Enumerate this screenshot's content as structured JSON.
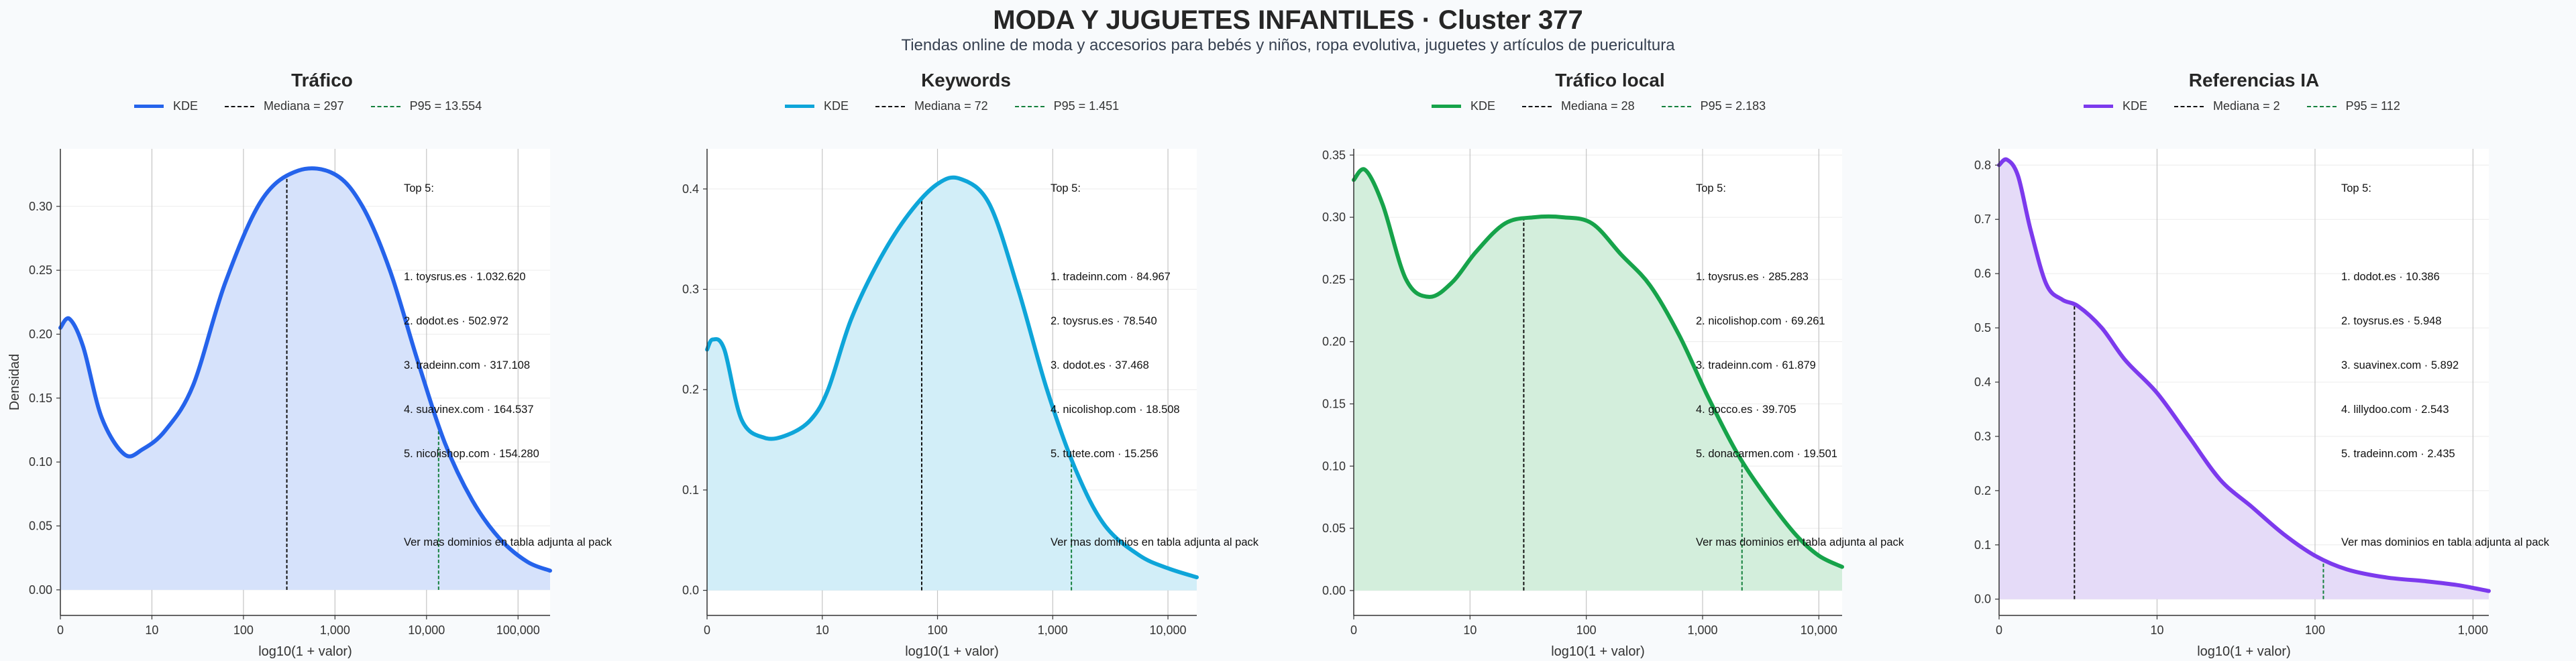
{
  "title": "MODA Y JUGUETES INFANTILES · Cluster 377",
  "subtitle": "Tiendas online de moda y accesorios para bebés y niños, ropa evolutiva, juguetes y artículos de puericultura",
  "colors": {
    "kde_stroke": "#2563eb",
    "median_line": "#111111",
    "p95_line": "#15803d"
  },
  "chart_data": [
    {
      "type": "area",
      "title": "Tráfico",
      "xlabel": "log10(1 + valor)",
      "ylabel": "Densidad",
      "color": "#2563eb",
      "fill": "#d6e2fb",
      "xlim": [
        0,
        5.35
      ],
      "ylim": [
        -0.02,
        0.345
      ],
      "x_ticks": [
        0,
        1,
        2,
        3,
        4,
        5
      ],
      "x_tick_labels": [
        "0",
        "10",
        "100",
        "1,000",
        "10,000",
        "100,000"
      ],
      "y_ticks": [
        0,
        0.05,
        0.1,
        0.15,
        0.2,
        0.25,
        0.3
      ],
      "y_tick_labels": [
        "0.00",
        "0.05",
        "0.10",
        "0.15",
        "0.20",
        "0.25",
        "0.30"
      ],
      "legend": {
        "kde": "KDE",
        "median": "Mediana = 297",
        "p95": "P95 = 13.554"
      },
      "median_x": 2.474,
      "p95_x": 4.132,
      "series": [
        {
          "name": "KDE",
          "x": [
            0,
            0.1,
            0.25,
            0.45,
            0.7,
            0.9,
            1.15,
            1.45,
            1.8,
            2.2,
            2.6,
            3.0,
            3.3,
            3.6,
            3.9,
            4.2,
            4.5,
            4.8,
            5.1,
            5.35
          ],
          "y": [
            0.205,
            0.212,
            0.19,
            0.135,
            0.106,
            0.11,
            0.125,
            0.16,
            0.24,
            0.305,
            0.328,
            0.325,
            0.3,
            0.25,
            0.18,
            0.115,
            0.07,
            0.04,
            0.022,
            0.015
          ]
        }
      ],
      "top5": {
        "heading": "Top 5:",
        "items": [
          "1. toysrus.es · 1.032.620",
          "2. dodot.es · 502.972",
          "3. tradeinn.com · 317.108",
          "4. suavinex.com · 164.537",
          "5. nicolishop.com · 154.280"
        ],
        "footer": "Ver mas dominios en tabla adjunta al pack"
      }
    },
    {
      "type": "area",
      "title": "Keywords",
      "xlabel": "log10(1 + valor)",
      "ylabel": "",
      "color": "#0ea5d9",
      "fill": "#d2eef8",
      "xlim": [
        0,
        4.25
      ],
      "ylim": [
        -0.025,
        0.44
      ],
      "x_ticks": [
        0,
        1,
        2,
        3,
        4
      ],
      "x_tick_labels": [
        "0",
        "10",
        "100",
        "1,000",
        "10,000"
      ],
      "y_ticks": [
        0,
        0.1,
        0.2,
        0.3,
        0.4
      ],
      "y_tick_labels": [
        "0.0",
        "0.1",
        "0.2",
        "0.3",
        "0.4"
      ],
      "legend": {
        "kde": "KDE",
        "median": "Mediana = 72",
        "p95": "P95 = 1.451"
      },
      "median_x": 1.863,
      "p95_x": 3.162,
      "series": [
        {
          "name": "KDE",
          "x": [
            0,
            0.05,
            0.15,
            0.3,
            0.5,
            0.7,
            0.9,
            1.05,
            1.25,
            1.5,
            1.75,
            2.0,
            2.2,
            2.45,
            2.7,
            2.95,
            3.2,
            3.45,
            3.75,
            4.0,
            4.25
          ],
          "y": [
            0.24,
            0.25,
            0.24,
            0.17,
            0.152,
            0.155,
            0.17,
            0.2,
            0.27,
            0.33,
            0.375,
            0.405,
            0.41,
            0.385,
            0.3,
            0.2,
            0.12,
            0.065,
            0.035,
            0.022,
            0.013
          ]
        }
      ],
      "top5": {
        "heading": "Top 5:",
        "items": [
          "1. tradeinn.com · 84.967",
          "2. toysrus.es · 78.540",
          "3. dodot.es · 37.468",
          "4. nicolishop.com · 18.508",
          "5. tutete.com · 15.256"
        ],
        "footer": "Ver mas dominios en tabla adjunta al pack"
      }
    },
    {
      "type": "area",
      "title": "Tráfico local",
      "xlabel": "log10(1 + valor)",
      "ylabel": "",
      "color": "#16a34a",
      "fill": "#d3eedc",
      "xlim": [
        0,
        4.2
      ],
      "ylim": [
        -0.02,
        0.355
      ],
      "x_ticks": [
        0,
        1,
        2,
        3,
        4
      ],
      "x_tick_labels": [
        "0",
        "10",
        "100",
        "1,000",
        "10,000"
      ],
      "y_ticks": [
        0,
        0.05,
        0.1,
        0.15,
        0.2,
        0.25,
        0.3,
        0.35
      ],
      "y_tick_labels": [
        "0.00",
        "0.05",
        "0.10",
        "0.15",
        "0.20",
        "0.25",
        "0.30",
        "0.35"
      ],
      "legend": {
        "kde": "KDE",
        "median": "Mediana = 28",
        "p95": "P95 = 2.183"
      },
      "median_x": 1.462,
      "p95_x": 3.339,
      "series": [
        {
          "name": "KDE",
          "x": [
            0,
            0.1,
            0.25,
            0.45,
            0.65,
            0.85,
            1.05,
            1.3,
            1.55,
            1.8,
            2.05,
            2.3,
            2.55,
            2.8,
            3.05,
            3.3,
            3.55,
            3.8,
            4.0,
            4.2
          ],
          "y": [
            0.33,
            0.338,
            0.31,
            0.25,
            0.236,
            0.248,
            0.272,
            0.295,
            0.3,
            0.3,
            0.295,
            0.27,
            0.245,
            0.205,
            0.155,
            0.11,
            0.075,
            0.045,
            0.028,
            0.019
          ]
        }
      ],
      "top5": {
        "heading": "Top 5:",
        "items": [
          "1. toysrus.es · 285.283",
          "2. nicolishop.com · 69.261",
          "3. tradeinn.com · 61.879",
          "4. gocco.es · 39.705",
          "5. donacarmen.com · 19.501"
        ],
        "footer": "Ver mas dominios en tabla adjunta al pack"
      }
    },
    {
      "type": "area",
      "title": "Referencias IA",
      "xlabel": "log10(1 + valor)",
      "ylabel": "",
      "color": "#7c3aed",
      "fill": "#e5dbf8",
      "xlim": [
        0,
        3.1
      ],
      "ylim": [
        -0.03,
        0.83
      ],
      "x_ticks": [
        0,
        1,
        2,
        3
      ],
      "x_tick_labels": [
        "0",
        "10",
        "100",
        "1,000"
      ],
      "y_ticks": [
        0,
        0.1,
        0.2,
        0.3,
        0.4,
        0.5,
        0.6,
        0.7,
        0.8
      ],
      "y_tick_labels": [
        "0.0",
        "0.1",
        "0.2",
        "0.3",
        "0.4",
        "0.5",
        "0.6",
        "0.7",
        "0.8"
      ],
      "legend": {
        "kde": "KDE",
        "median": "Mediana = 2",
        "p95": "P95 = 112"
      },
      "median_x": 0.477,
      "p95_x": 2.053,
      "series": [
        {
          "name": "KDE",
          "x": [
            0,
            0.05,
            0.12,
            0.2,
            0.3,
            0.4,
            0.5,
            0.65,
            0.8,
            1.0,
            1.2,
            1.4,
            1.6,
            1.8,
            2.0,
            2.2,
            2.45,
            2.7,
            2.9,
            3.1
          ],
          "y": [
            0.8,
            0.81,
            0.78,
            0.68,
            0.58,
            0.552,
            0.54,
            0.5,
            0.44,
            0.38,
            0.3,
            0.22,
            0.17,
            0.12,
            0.08,
            0.055,
            0.04,
            0.033,
            0.026,
            0.015
          ]
        }
      ],
      "top5": {
        "heading": "Top 5:",
        "items": [
          "1. dodot.es · 10.386",
          "2. toysrus.es · 5.948",
          "3. suavinex.com · 5.892",
          "4. lillydoo.com · 2.543",
          "5. tradeinn.com · 2.435"
        ],
        "footer": "Ver mas dominios en tabla adjunta al pack"
      }
    }
  ]
}
